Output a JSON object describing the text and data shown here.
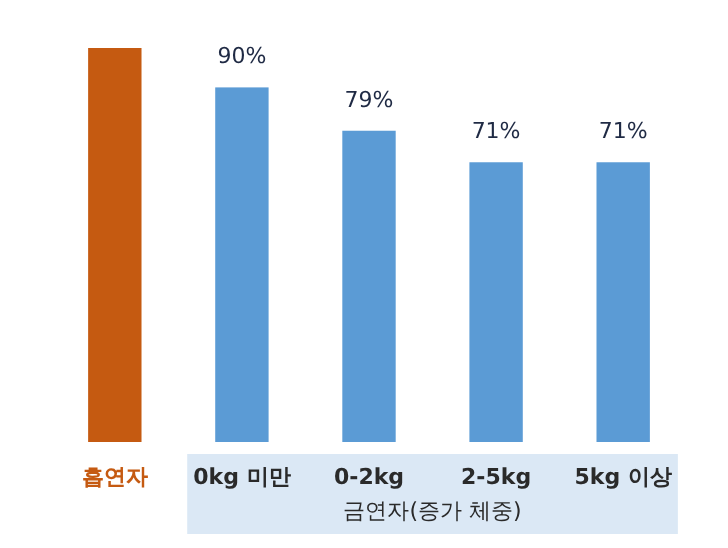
{
  "chart_data": {
    "type": "bar",
    "categories": [
      "흡연자",
      "0kg 미만",
      "0-2kg",
      "2-5kg",
      "5kg 이상"
    ],
    "values": [
      100,
      90,
      79,
      71,
      71
    ],
    "colors": [
      "#c55a11",
      "#5b9bd5",
      "#5b9bd5",
      "#5b9bd5",
      "#5b9bd5"
    ],
    "value_labels": [
      null,
      "90%",
      "79%",
      "71%",
      "71%"
    ],
    "xlabel": "금연자(증가 체중)",
    "ylim": [
      0,
      100
    ]
  }
}
